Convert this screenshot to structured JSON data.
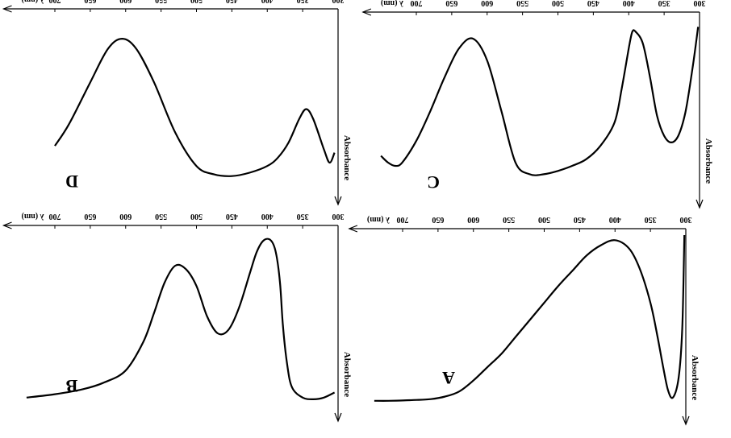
{
  "chart_data": [
    {
      "type": "line",
      "panel_label": "A",
      "xlabel": "λ (nm)",
      "ylabel": "Absorbance",
      "xticks": [
        300,
        350,
        400,
        450,
        500,
        550,
        600,
        650,
        700
      ],
      "xlim": [
        300,
        748
      ],
      "ylim": [
        0,
        1
      ],
      "grid": false,
      "series": [
        {
          "x": [
            302,
            305,
            310,
            318,
            325,
            332,
            340,
            350,
            365,
            380,
            400,
            420,
            440,
            460,
            480,
            500,
            520,
            540,
            560,
            580,
            600,
            620,
            640,
            660,
            680,
            700,
            720,
            740
          ],
          "y": [
            0.0,
            0.55,
            0.84,
            0.96,
            0.92,
            0.78,
            0.6,
            0.4,
            0.2,
            0.08,
            0.03,
            0.06,
            0.12,
            0.21,
            0.3,
            0.4,
            0.5,
            0.6,
            0.7,
            0.78,
            0.86,
            0.925,
            0.955,
            0.97,
            0.975,
            0.978,
            0.98,
            0.98
          ]
        }
      ]
    },
    {
      "type": "line",
      "panel_label": "B",
      "xlabel": "λ (nm)",
      "ylabel": "Absorbance",
      "xticks": [
        300,
        350,
        400,
        450,
        500,
        550,
        600,
        650,
        700
      ],
      "xlim": [
        300,
        745
      ],
      "ylim": [
        0,
        1
      ],
      "grid": false,
      "series": [
        {
          "x": [
            305,
            320,
            335,
            350,
            365,
            372,
            378,
            382,
            388,
            395,
            405,
            415,
            425,
            440,
            455,
            470,
            485,
            500,
            515,
            530,
            545,
            560,
            575,
            600,
            630,
            660,
            700,
            740
          ],
          "y": [
            0.95,
            0.98,
            0.99,
            0.98,
            0.92,
            0.78,
            0.55,
            0.3,
            0.12,
            0.05,
            0.05,
            0.12,
            0.25,
            0.45,
            0.58,
            0.6,
            0.5,
            0.32,
            0.22,
            0.2,
            0.3,
            0.48,
            0.65,
            0.82,
            0.89,
            0.93,
            0.96,
            0.98
          ]
        }
      ]
    },
    {
      "type": "line",
      "panel_label": "C",
      "xlabel": "λ (nm)",
      "ylabel": "Absorbance",
      "xticks": [
        300,
        350,
        400,
        450,
        500,
        550,
        600,
        650,
        700
      ],
      "xlim": [
        300,
        748
      ],
      "ylim": [
        0,
        1
      ],
      "grid": false,
      "series": [
        {
          "x": [
            302,
            310,
            320,
            330,
            340,
            350,
            360,
            370,
            380,
            390,
            395,
            400,
            410,
            420,
            440,
            460,
            480,
            500,
            520,
            540,
            560,
            580,
            600,
            620,
            640,
            660,
            680,
            700,
            720,
            730,
            740,
            750
          ],
          "y": [
            0.05,
            0.3,
            0.56,
            0.7,
            0.74,
            0.7,
            0.58,
            0.35,
            0.15,
            0.08,
            0.08,
            0.18,
            0.42,
            0.62,
            0.76,
            0.84,
            0.88,
            0.91,
            0.93,
            0.93,
            0.86,
            0.55,
            0.25,
            0.12,
            0.18,
            0.35,
            0.55,
            0.73,
            0.86,
            0.88,
            0.86,
            0.82
          ]
        }
      ]
    },
    {
      "type": "line",
      "panel_label": "D",
      "xlabel": "λ (nm)",
      "ylabel": "Absorbance",
      "xticks": [
        300,
        350,
        400,
        450,
        500,
        550,
        600,
        650,
        700
      ],
      "xlim": [
        300,
        745
      ],
      "ylim": [
        0,
        1
      ],
      "grid": false,
      "series": [
        {
          "x": [
            305,
            312,
            320,
            335,
            345,
            355,
            370,
            385,
            400,
            425,
            450,
            475,
            500,
            530,
            560,
            585,
            605,
            625,
            650,
            680,
            700
          ],
          "y": [
            0.82,
            0.88,
            0.8,
            0.62,
            0.56,
            0.62,
            0.76,
            0.85,
            0.9,
            0.94,
            0.96,
            0.95,
            0.9,
            0.7,
            0.4,
            0.2,
            0.14,
            0.2,
            0.4,
            0.65,
            0.78
          ]
        }
      ]
    }
  ]
}
